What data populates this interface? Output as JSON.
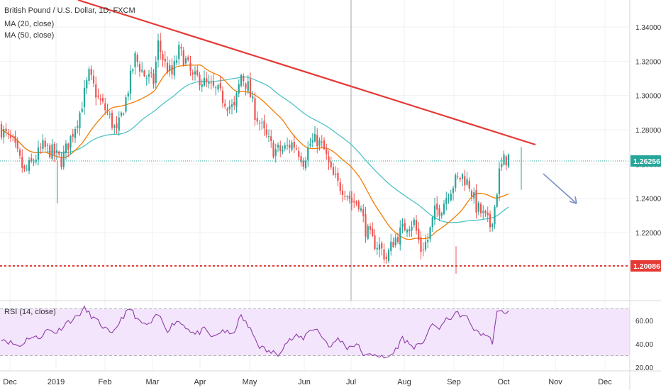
{
  "legend": {
    "symbol": "British Pound / U.S. Dollar, 1D, FXCM",
    "ma20": "MA (20, close)",
    "ma50": "MA (50, close)",
    "rsi": "RSI (14, close)"
  },
  "colors": {
    "up": "#26a69a",
    "down": "#ef5350",
    "ma20": "#f57c00",
    "ma50": "#4fc3c7",
    "trendline": "#e53935",
    "support": "#e53935",
    "arrow": "#7b8fc7",
    "rsi_line": "#8e3da8",
    "rsi_band": "#f3e5fb",
    "price_dot": "#26a69a",
    "tag_support": "#e53935",
    "tag_price": "#26a69a"
  },
  "chart_data": [
    {
      "type": "candlestick",
      "title": "British Pound / U.S. Dollar, 1D, FXCM",
      "ylim": [
        1.188,
        1.358
      ],
      "y_ticks": [
        1.22,
        1.24,
        1.26,
        1.28,
        1.3,
        1.32,
        1.34
      ],
      "y_tick_labels": [
        "1.22000",
        "1.24000",
        "1.26000",
        "1.28000",
        "1.30000",
        "1.32000",
        "1.34000"
      ],
      "x_tick_labels": [
        "Dec",
        "2019",
        "Feb",
        "Mar",
        "Apr",
        "May",
        "Jun",
        "Jul",
        "Aug",
        "Sep",
        "Oct",
        "Nov",
        "Dec"
      ],
      "price_anchors": [
        [
          0,
          1.28
        ],
        [
          5,
          1.272
        ],
        [
          10,
          1.255
        ],
        [
          14,
          1.262
        ],
        [
          18,
          1.27
        ],
        [
          22,
          1.267
        ],
        [
          26,
          1.262
        ],
        [
          30,
          1.275
        ],
        [
          34,
          1.29
        ],
        [
          38,
          1.312
        ],
        [
          42,
          1.298
        ],
        [
          46,
          1.29
        ],
        [
          50,
          1.278
        ],
        [
          54,
          1.298
        ],
        [
          58,
          1.322
        ],
        [
          62,
          1.312
        ],
        [
          66,
          1.308
        ],
        [
          68,
          1.33
        ],
        [
          71,
          1.318
        ],
        [
          74,
          1.312
        ],
        [
          77,
          1.326
        ],
        [
          80,
          1.32
        ],
        [
          83,
          1.31
        ],
        [
          86,
          1.31
        ],
        [
          90,
          1.305
        ],
        [
          94,
          1.302
        ],
        [
          98,
          1.295
        ],
        [
          101,
          1.292
        ],
        [
          104,
          1.312
        ],
        [
          107,
          1.305
        ],
        [
          110,
          1.29
        ],
        [
          114,
          1.278
        ],
        [
          118,
          1.268
        ],
        [
          122,
          1.268
        ],
        [
          126,
          1.272
        ],
        [
          128,
          1.27
        ],
        [
          131,
          1.262
        ],
        [
          134,
          1.272
        ],
        [
          137,
          1.274
        ],
        [
          140,
          1.268
        ],
        [
          143,
          1.255
        ],
        [
          146,
          1.248
        ],
        [
          149,
          1.245
        ],
        [
          152,
          1.238
        ],
        [
          155,
          1.238
        ],
        [
          158,
          1.222
        ],
        [
          161,
          1.215
        ],
        [
          164,
          1.212
        ],
        [
          167,
          1.205
        ],
        [
          170,
          1.215
        ],
        [
          173,
          1.22
        ],
        [
          176,
          1.225
        ],
        [
          179,
          1.226
        ],
        [
          182,
          1.21
        ],
        [
          185,
          1.216
        ],
        [
          188,
          1.232
        ],
        [
          191,
          1.235
        ],
        [
          194,
          1.244
        ],
        [
          197,
          1.25
        ],
        [
          200,
          1.253
        ],
        [
          203,
          1.248
        ],
        [
          206,
          1.235
        ],
        [
          209,
          1.23
        ],
        [
          212,
          1.224
        ],
        [
          214,
          1.235
        ],
        [
          216,
          1.255
        ],
        [
          218,
          1.262
        ],
        [
          220,
          1.264
        ]
      ],
      "rsi": {
        "label": "RSI (14, close)",
        "ylim": [
          17,
          80
        ],
        "y_ticks": [
          20,
          40,
          60
        ],
        "y_tick_labels": [
          "20.00",
          "40.00",
          "60.00"
        ],
        "band": [
          30,
          70
        ],
        "anchors": [
          [
            0,
            45
          ],
          [
            4,
            41
          ],
          [
            8,
            38
          ],
          [
            12,
            46
          ],
          [
            16,
            45
          ],
          [
            20,
            52
          ],
          [
            24,
            50
          ],
          [
            28,
            58
          ],
          [
            32,
            62
          ],
          [
            36,
            70
          ],
          [
            40,
            62
          ],
          [
            44,
            55
          ],
          [
            48,
            47
          ],
          [
            52,
            62
          ],
          [
            56,
            70
          ],
          [
            60,
            58
          ],
          [
            64,
            56
          ],
          [
            68,
            65
          ],
          [
            72,
            52
          ],
          [
            76,
            60
          ],
          [
            80,
            55
          ],
          [
            84,
            48
          ],
          [
            88,
            52
          ],
          [
            92,
            45
          ],
          [
            96,
            52
          ],
          [
            100,
            47
          ],
          [
            104,
            64
          ],
          [
            108,
            52
          ],
          [
            112,
            38
          ],
          [
            116,
            33
          ],
          [
            120,
            32
          ],
          [
            124,
            42
          ],
          [
            128,
            46
          ],
          [
            131,
            45
          ],
          [
            134,
            53
          ],
          [
            137,
            52
          ],
          [
            140,
            44
          ],
          [
            143,
            37
          ],
          [
            146,
            45
          ],
          [
            150,
            37
          ],
          [
            154,
            40
          ],
          [
            158,
            29
          ],
          [
            162,
            32
          ],
          [
            166,
            27
          ],
          [
            170,
            32
          ],
          [
            174,
            45
          ],
          [
            178,
            38
          ],
          [
            182,
            38
          ],
          [
            186,
            55
          ],
          [
            190,
            54
          ],
          [
            194,
            62
          ],
          [
            198,
            66
          ],
          [
            202,
            62
          ],
          [
            206,
            50
          ],
          [
            210,
            48
          ],
          [
            213,
            42
          ],
          [
            215,
            66
          ],
          [
            218,
            68
          ],
          [
            220,
            67
          ]
        ]
      },
      "last_price": "1.26256",
      "support_level": "1.20086"
    }
  ]
}
